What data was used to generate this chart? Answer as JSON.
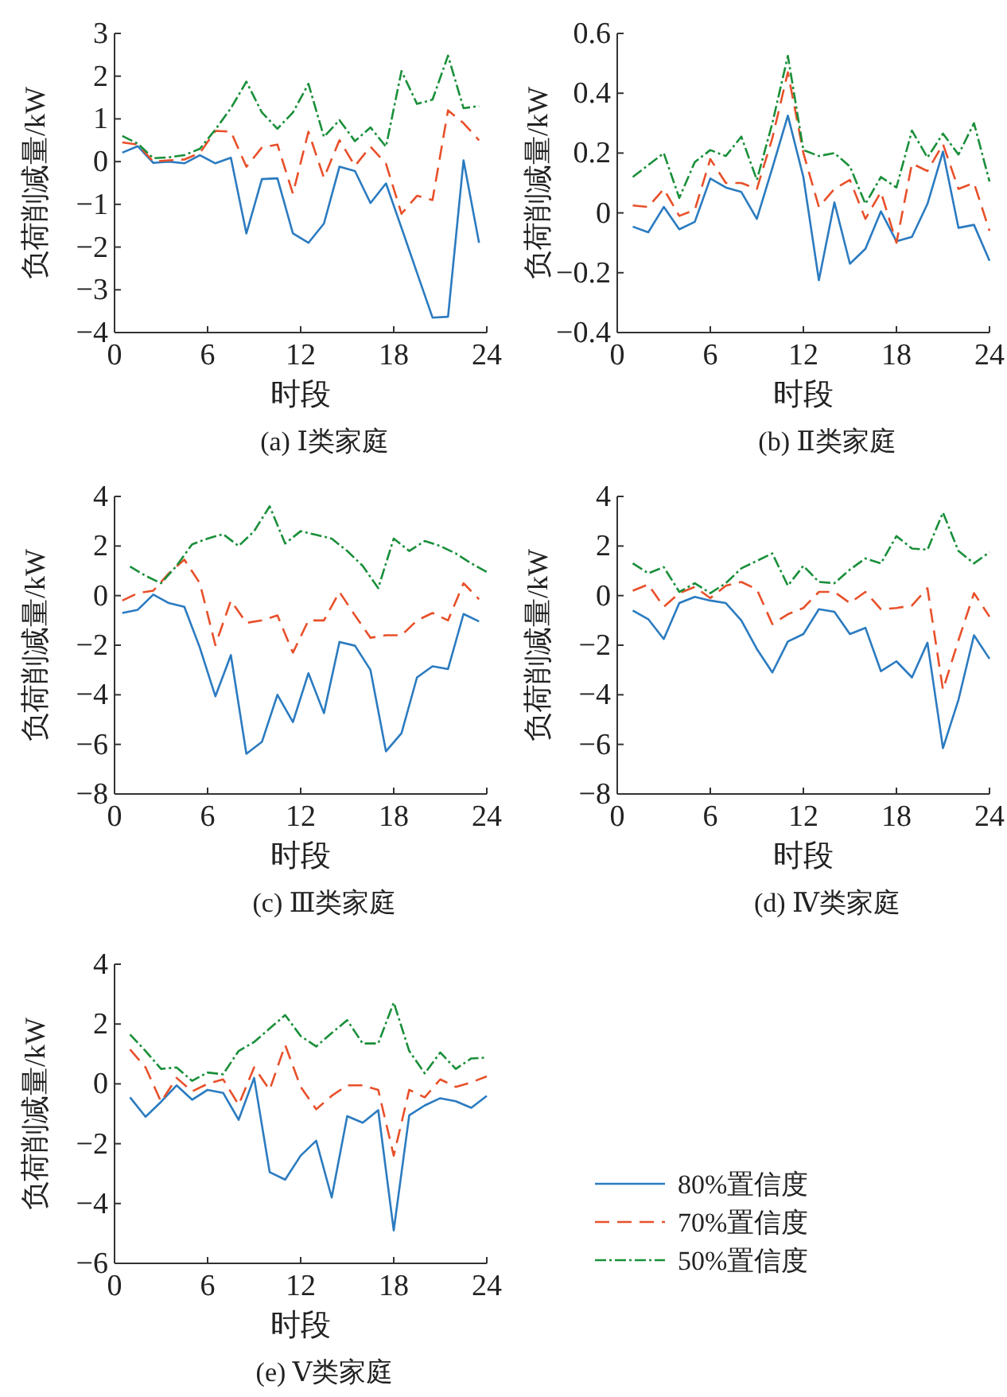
{
  "chart_data": [
    {
      "type": "line",
      "title": "(a)  Ⅰ类家庭",
      "xlabel": "时段",
      "ylabel": "负荷削减量/kW",
      "xlim": [
        0,
        24
      ],
      "ylim": [
        -4,
        3
      ],
      "xticks": [
        0,
        6,
        12,
        18,
        24
      ],
      "yticks": [
        {
          "value": -4,
          "label": "−4"
        },
        {
          "value": -3,
          "label": "−3"
        },
        {
          "value": -2,
          "label": "−2"
        },
        {
          "value": -1,
          "label": "−1"
        },
        0,
        1,
        2,
        3
      ],
      "legend": false,
      "x": [
        0.5,
        1.5,
        2.5,
        3.5,
        4.5,
        5.5,
        6.5,
        7.5,
        8.5,
        9.5,
        10.5,
        11.5,
        12.5,
        13.5,
        14.5,
        15.5,
        16.5,
        17.5,
        18.5,
        19.5,
        20.5,
        21.5,
        22.5,
        23.5
      ],
      "series": [
        {
          "color": "#2b7bc0",
          "line_style": "solid",
          "values": [
            0.21,
            0.36,
            -0.03,
            0.0,
            -0.04,
            0.15,
            -0.04,
            0.09,
            -1.68,
            -0.41,
            -0.39,
            -1.68,
            -1.9,
            -1.45,
            -0.12,
            -0.22,
            -0.97,
            -0.51,
            -1.55,
            -2.6,
            -3.65,
            -3.63,
            0.03,
            -1.9
          ]
        },
        {
          "color": "#e8502a",
          "line_style": "dashed",
          "values": [
            0.45,
            0.4,
            0.0,
            0.03,
            0.05,
            0.2,
            0.72,
            0.7,
            -0.12,
            0.33,
            0.4,
            -0.75,
            0.7,
            -0.38,
            0.5,
            -0.1,
            0.35,
            -0.05,
            -1.22,
            -0.8,
            -0.9,
            1.2,
            0.9,
            0.5
          ]
        },
        {
          "color": "#1a8f3a",
          "line_style": "dotted",
          "values": [
            0.6,
            0.42,
            0.08,
            0.1,
            0.15,
            0.3,
            0.75,
            1.25,
            1.87,
            1.15,
            0.77,
            1.15,
            1.82,
            0.58,
            0.97,
            0.48,
            0.8,
            0.35,
            2.12,
            1.35,
            1.45,
            2.48,
            1.25,
            1.3
          ]
        }
      ]
    },
    {
      "type": "line",
      "title": "(b)  Ⅱ类家庭",
      "xlabel": "时段",
      "ylabel": "负荷削减量/kW",
      "xlim": [
        0,
        24
      ],
      "ylim": [
        -0.4,
        0.6
      ],
      "xticks": [
        0,
        6,
        12,
        18,
        24
      ],
      "yticks": [
        {
          "value": -0.4,
          "label": "−0.4"
        },
        {
          "value": -0.2,
          "label": "−0.2"
        },
        0,
        0.2,
        0.4,
        0.6
      ],
      "legend": false,
      "x": [
        1,
        2,
        3,
        4,
        5,
        6,
        7,
        8,
        9,
        10,
        11,
        12,
        13,
        14,
        15,
        16,
        17,
        18,
        19,
        20,
        21,
        22,
        23,
        24
      ],
      "series": [
        {
          "color": "#2b7bc0",
          "line_style": "solid",
          "values": [
            -0.046,
            -0.065,
            0.02,
            -0.055,
            -0.03,
            0.115,
            0.085,
            0.07,
            -0.02,
            0.15,
            0.325,
            0.12,
            -0.225,
            0.035,
            -0.17,
            -0.12,
            0.005,
            -0.095,
            -0.08,
            0.03,
            0.205,
            -0.05,
            -0.04,
            -0.16
          ]
        },
        {
          "color": "#e8502a",
          "line_style": "dashed",
          "values": [
            0.025,
            0.02,
            0.08,
            -0.01,
            0.01,
            0.18,
            0.1,
            0.1,
            0.08,
            0.25,
            0.47,
            0.2,
            0.02,
            0.08,
            0.11,
            -0.02,
            0.07,
            -0.1,
            0.165,
            0.14,
            0.23,
            0.08,
            0.1,
            -0.06
          ]
        },
        {
          "color": "#1a8f3a",
          "line_style": "dotted",
          "values": [
            0.12,
            0.16,
            0.2,
            0.05,
            0.17,
            0.21,
            0.19,
            0.255,
            0.11,
            0.3,
            0.525,
            0.21,
            0.19,
            0.2,
            0.155,
            0.03,
            0.12,
            0.085,
            0.275,
            0.185,
            0.265,
            0.195,
            0.3,
            0.105
          ]
        }
      ]
    },
    {
      "type": "line",
      "title": "(c)  Ⅲ类家庭",
      "xlabel": "时段",
      "ylabel": "负荷削减量/kW",
      "xlim": [
        0,
        24
      ],
      "ylim": [
        -8,
        4
      ],
      "xticks": [
        0,
        6,
        12,
        18,
        24
      ],
      "yticks": [
        {
          "value": -8,
          "label": "−8"
        },
        {
          "value": -6,
          "label": "−6"
        },
        {
          "value": -4,
          "label": "−4"
        },
        {
          "value": -2,
          "label": "−2"
        },
        0,
        2,
        4
      ],
      "legend": false,
      "x": [
        0.5,
        1.5,
        2.5,
        3.5,
        4.5,
        5.5,
        6.5,
        7.5,
        8.5,
        9.5,
        10.5,
        11.5,
        12.5,
        13.5,
        14.5,
        15.5,
        16.5,
        17.5,
        18.5,
        19.5,
        20.5,
        21.5,
        22.5,
        23.5
      ],
      "series": [
        {
          "color": "#2b7bc0",
          "line_style": "solid",
          "values": [
            -0.7,
            -0.57,
            0.04,
            -0.3,
            -0.45,
            -2.1,
            -4.06,
            -2.4,
            -6.38,
            -5.9,
            -4.0,
            -5.1,
            -3.13,
            -4.74,
            -1.87,
            -2.02,
            -3.0,
            -6.28,
            -5.55,
            -3.3,
            -2.85,
            -2.96,
            -0.74,
            -1.04
          ]
        },
        {
          "color": "#e8502a",
          "line_style": "dashed",
          "values": [
            -0.2,
            0.1,
            0.2,
            0.9,
            1.45,
            0.5,
            -2.0,
            -0.2,
            -1.1,
            -1.0,
            -0.8,
            -2.3,
            -1.0,
            -1.0,
            0.15,
            -0.8,
            -1.7,
            -1.6,
            -1.6,
            -1.0,
            -0.7,
            -1.0,
            0.5,
            -0.15
          ]
        },
        {
          "color": "#1a8f3a",
          "line_style": "dotted",
          "x": [
            1,
            2,
            3,
            4,
            5,
            6,
            7,
            8,
            9,
            10,
            11,
            12,
            13,
            14,
            15,
            16,
            17,
            18,
            19,
            20,
            21,
            22,
            23,
            24
          ],
          "values": [
            1.17,
            0.8,
            0.5,
            1.2,
            2.07,
            2.3,
            2.48,
            2.0,
            2.6,
            3.6,
            2.1,
            2.6,
            2.45,
            2.3,
            1.8,
            1.2,
            0.3,
            2.3,
            1.8,
            2.2,
            2.0,
            1.7,
            1.3,
            0.95
          ]
        }
      ]
    },
    {
      "type": "line",
      "title": "(d)  Ⅳ类家庭",
      "xlabel": "时段",
      "ylabel": "负荷削减量/kW",
      "xlim": [
        0,
        24
      ],
      "ylim": [
        -8,
        4
      ],
      "xticks": [
        0,
        6,
        12,
        18,
        24
      ],
      "yticks": [
        {
          "value": -8,
          "label": "−8"
        },
        {
          "value": -6,
          "label": "−6"
        },
        {
          "value": -4,
          "label": "−4"
        },
        {
          "value": -2,
          "label": "−2"
        },
        0,
        2,
        4
      ],
      "legend": false,
      "x": [
        1,
        2,
        3,
        4,
        5,
        6,
        7,
        8,
        9,
        10,
        11,
        12,
        13,
        14,
        15,
        16,
        17,
        18,
        19,
        20,
        21,
        22,
        23,
        24
      ],
      "series": [
        {
          "color": "#2b7bc0",
          "line_style": "solid",
          "values": [
            -0.6,
            -0.95,
            -1.75,
            -0.3,
            -0.05,
            -0.2,
            -0.3,
            -1.0,
            -2.15,
            -3.1,
            -1.85,
            -1.55,
            -0.55,
            -0.65,
            -1.55,
            -1.3,
            -3.05,
            -2.65,
            -3.3,
            -1.9,
            -6.15,
            -4.2,
            -1.6,
            -2.55
          ]
        },
        {
          "color": "#e8502a",
          "line_style": "dashed",
          "values": [
            0.2,
            0.45,
            -0.45,
            0.1,
            0.35,
            -0.1,
            0.4,
            0.55,
            0.25,
            -1.15,
            -0.75,
            -0.5,
            0.15,
            0.15,
            -0.3,
            0.15,
            -0.55,
            -0.5,
            -0.4,
            0.3,
            -3.8,
            -1.8,
            0.1,
            -0.85
          ]
        },
        {
          "color": "#1a8f3a",
          "line_style": "dotted",
          "values": [
            1.3,
            0.9,
            1.15,
            0.15,
            0.5,
            0.1,
            0.5,
            1.1,
            1.4,
            1.7,
            0.4,
            1.2,
            0.55,
            0.5,
            1.05,
            1.5,
            1.3,
            2.4,
            1.9,
            1.85,
            3.35,
            1.8,
            1.3,
            1.75
          ]
        }
      ]
    },
    {
      "type": "line",
      "title": "(e)  Ⅴ类家庭",
      "xlabel": "时段",
      "ylabel": "负荷削减量/kW",
      "xlim": [
        0,
        24
      ],
      "ylim": [
        -6,
        4
      ],
      "xticks": [
        0,
        6,
        12,
        18,
        24
      ],
      "yticks": [
        {
          "value": -6,
          "label": "−6"
        },
        {
          "value": -4,
          "label": "−4"
        },
        {
          "value": -2,
          "label": "−2"
        },
        0,
        2,
        4
      ],
      "legend": "right",
      "x": [
        1,
        2,
        3,
        4,
        5,
        6,
        7,
        8,
        9,
        10,
        11,
        12,
        13,
        14,
        15,
        16,
        17,
        18,
        19,
        20,
        21,
        22,
        23,
        24
      ],
      "series": [
        {
          "name": "80%置信度",
          "color": "#2b7bc0",
          "line_style": "solid",
          "values": [
            -0.45,
            -1.1,
            -0.6,
            -0.05,
            -0.53,
            -0.2,
            -0.3,
            -1.2,
            0.2,
            -2.95,
            -3.2,
            -2.4,
            -1.9,
            -3.8,
            -1.08,
            -1.3,
            -0.88,
            -4.9,
            -1.05,
            -0.72,
            -0.48,
            -0.58,
            -0.8,
            -0.4
          ]
        },
        {
          "name": "70%置信度",
          "color": "#e8502a",
          "line_style": "dashed",
          "values": [
            1.15,
            0.55,
            -0.6,
            0.2,
            -0.25,
            0.0,
            0.15,
            -0.7,
            0.55,
            -0.2,
            1.3,
            -0.1,
            -0.85,
            -0.4,
            -0.05,
            -0.05,
            -0.2,
            -2.4,
            -0.2,
            -0.45,
            0.15,
            -0.1,
            0.05,
            0.25
          ]
        },
        {
          "name": "50%置信度",
          "color": "#1a8f3a",
          "line_style": "dotted",
          "values": [
            1.65,
            1.1,
            0.5,
            0.55,
            0.1,
            0.38,
            0.32,
            1.1,
            1.4,
            1.85,
            2.3,
            1.6,
            1.25,
            1.7,
            2.13,
            1.35,
            1.35,
            2.72,
            1.1,
            0.35,
            1.05,
            0.5,
            0.85,
            0.88
          ]
        }
      ]
    }
  ]
}
